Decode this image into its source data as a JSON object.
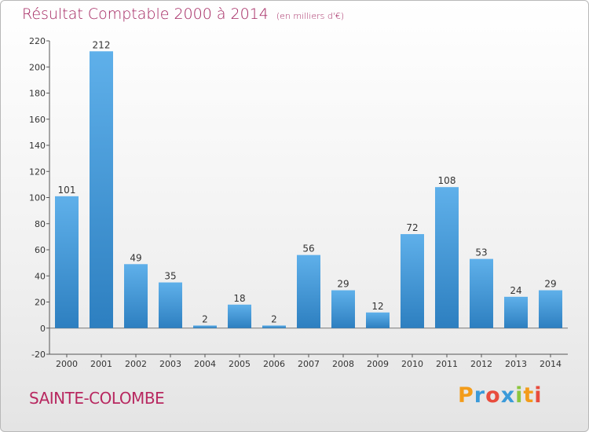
{
  "page": {
    "title": "Résultat Comptable 2000 à 2014",
    "unit": "(en milliers d'€)",
    "commune": "SAINTE-COLOMBE",
    "logo": {
      "letters": [
        {
          "char": "P",
          "color": "#f39c1a"
        },
        {
          "char": "r",
          "color": "#3a9ad9"
        },
        {
          "char": "o",
          "color": "#e84c3d"
        },
        {
          "char": "x",
          "color": "#3a9ad9"
        },
        {
          "char": "i",
          "color": "#8cc63e"
        },
        {
          "char": "t",
          "color": "#f39c1a"
        },
        {
          "char": "i",
          "color": "#e84c3d"
        }
      ]
    }
  },
  "chart_data": {
    "type": "bar",
    "title": "Résultat Comptable 2000 à 2014",
    "subtitle": "(en milliers d'€)",
    "categories": [
      "2000",
      "2001",
      "2002",
      "2003",
      "2004",
      "2005",
      "2006",
      "2007",
      "2008",
      "2009",
      "2010",
      "2011",
      "2012",
      "2013",
      "2014"
    ],
    "values": [
      101,
      212,
      49,
      35,
      2,
      18,
      2,
      56,
      29,
      12,
      72,
      108,
      53,
      24,
      29
    ],
    "ylim": [
      -20,
      220
    ],
    "yticks": [
      -20,
      0,
      20,
      40,
      60,
      80,
      100,
      120,
      140,
      160,
      180,
      200,
      220
    ],
    "grid": false,
    "bar_color_top": "#5fb0ea",
    "bar_color_bottom": "#2d7fc0"
  }
}
